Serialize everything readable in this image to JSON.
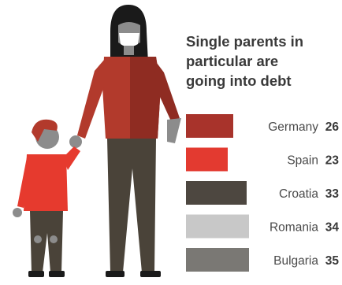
{
  "chart_data": {
    "type": "bar",
    "title_lines": [
      "Single parents in",
      "particular are",
      "going into debt"
    ],
    "categories": [
      "Germany",
      "Spain",
      "Croatia",
      "Romania",
      "Bulgaria"
    ],
    "values": [
      26,
      23,
      33,
      34,
      35
    ],
    "colors": [
      "#a8332b",
      "#e33a30",
      "#4d4740",
      "#c8c8c8",
      "#7a7874"
    ]
  },
  "illustration": {
    "name": "mother-and-child-illustration",
    "colors": {
      "coat": "#b23a2c",
      "coat_shadow": "#8f2c22",
      "child_shirt": "#e63a2e",
      "trousers": "#4a4339",
      "hair": "#1a1a1a",
      "skin": "#8c8c8c",
      "mask": "#ffffff"
    }
  }
}
